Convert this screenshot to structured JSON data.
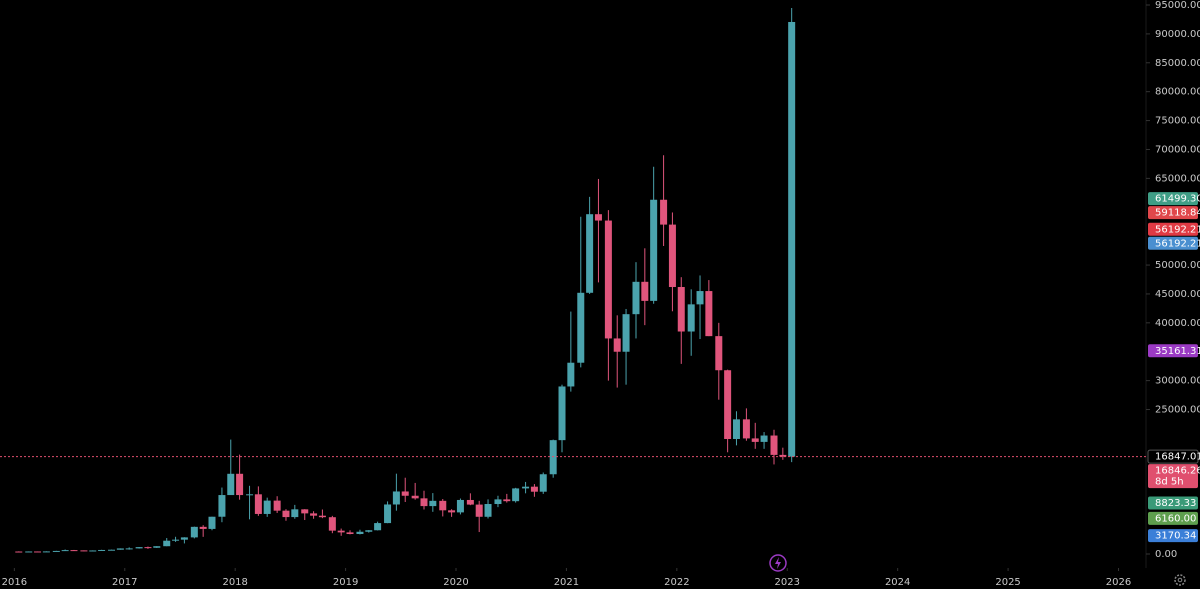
{
  "chart_data": {
    "type": "candlestick",
    "up_color": "#4ba3ad",
    "down_color": "#e0557c",
    "x": [
      2016.04,
      2016.13,
      2016.21,
      2016.29,
      2016.38,
      2016.46,
      2016.54,
      2016.63,
      2016.71,
      2016.79,
      2016.88,
      2016.96,
      2017.04,
      2017.13,
      2017.21,
      2017.29,
      2017.38,
      2017.46,
      2017.54,
      2017.63,
      2017.71,
      2017.79,
      2017.88,
      2017.96,
      2018.04,
      2018.13,
      2018.21,
      2018.29,
      2018.38,
      2018.46,
      2018.54,
      2018.63,
      2018.71,
      2018.79,
      2018.88,
      2018.96,
      2019.04,
      2019.13,
      2019.21,
      2019.29,
      2019.38,
      2019.46,
      2019.54,
      2019.63,
      2019.71,
      2019.79,
      2019.88,
      2019.96,
      2020.04,
      2020.13,
      2020.21,
      2020.29,
      2020.38,
      2020.46,
      2020.54,
      2020.63,
      2020.71,
      2020.79,
      2020.88,
      2020.96,
      2021.04,
      2021.13,
      2021.21,
      2021.29,
      2021.38,
      2021.46,
      2021.54,
      2021.63,
      2021.71,
      2021.79,
      2021.88,
      2021.96,
      2022.04,
      2022.13,
      2022.21,
      2022.29,
      2022.38,
      2022.46,
      2022.54,
      2022.63,
      2022.71,
      2022.79,
      2022.88,
      2022.96,
      2023.04
    ],
    "open": [
      430,
      368,
      437,
      416,
      448,
      531,
      673,
      624,
      573,
      609,
      698,
      742,
      963,
      970,
      1190,
      1080,
      1348,
      2300,
      2480,
      2875,
      4700,
      4340,
      6450,
      10200,
      13880,
      10200,
      10330,
      6930,
      9240,
      7500,
      6390,
      7730,
      7030,
      6630,
      6370,
      4040,
      3740,
      3460,
      3850,
      4110,
      5350,
      8570,
      10820,
      10080,
      9630,
      8290,
      9200,
      7560,
      7200,
      9350,
      8550,
      6440,
      8650,
      9450,
      9140,
      11350,
      11650,
      10780,
      13800,
      19700,
      28990,
      33100,
      45200,
      58800,
      57700,
      37300,
      35000,
      41500,
      47100,
      43800,
      61300,
      57000,
      46200,
      38500,
      43200,
      45500,
      37700,
      31800,
      19900,
      23300,
      20000,
      19400,
      20500,
      17150,
      16847
    ],
    "high": [
      460,
      448,
      440,
      470,
      550,
      780,
      704,
      626,
      630,
      730,
      755,
      975,
      1150,
      1200,
      1290,
      1350,
      2760,
      2980,
      2900,
      4740,
      4980,
      6450,
      11500,
      19800,
      17200,
      11800,
      11700,
      9750,
      10000,
      7750,
      8500,
      7760,
      7400,
      7700,
      6600,
      4400,
      4100,
      4200,
      4140,
      5600,
      9100,
      13900,
      13200,
      12300,
      10950,
      10540,
      9520,
      7750,
      9600,
      10500,
      9200,
      9450,
      10080,
      10400,
      11450,
      12470,
      12100,
      14100,
      19800,
      29300,
      41950,
      58350,
      61800,
      64900,
      59500,
      41300,
      42400,
      50500,
      52900,
      67000,
      69000,
      59100,
      47900,
      45800,
      48200,
      47400,
      40000,
      31900,
      24700,
      25200,
      22700,
      21100,
      21500,
      18400,
      94480
    ],
    "low": [
      350,
      366,
      410,
      414,
      436,
      530,
      604,
      471,
      570,
      608,
      685,
      742,
      751,
      936,
      890,
      1050,
      1348,
      2100,
      1830,
      2700,
      2970,
      4110,
      5500,
      10900,
      9400,
      6000,
      6600,
      6430,
      7100,
      5750,
      6100,
      5880,
      6100,
      6200,
      3600,
      3150,
      3400,
      3390,
      3700,
      4080,
      5330,
      7500,
      9000,
      9400,
      7700,
      7300,
      6500,
      6430,
      6850,
      8450,
      3800,
      6150,
      8110,
      8900,
      8900,
      10500,
      9900,
      10400,
      13200,
      17600,
      28100,
      32300,
      45000,
      47000,
      30000,
      28800,
      29300,
      37300,
      39600,
      43300,
      53300,
      42000,
      32900,
      34300,
      37200,
      37700,
      26700,
      17600,
      18800,
      19600,
      18200,
      18200,
      15500,
      16300,
      15900
    ],
    "close": [
      368,
      437,
      416,
      448,
      531,
      673,
      624,
      573,
      609,
      698,
      742,
      963,
      970,
      1190,
      1080,
      1348,
      2300,
      2480,
      2875,
      4700,
      4340,
      6450,
      10200,
      13880,
      10200,
      10330,
      6930,
      9240,
      7500,
      6390,
      7730,
      7030,
      6630,
      6370,
      4040,
      3740,
      3460,
      3850,
      4110,
      5350,
      8570,
      10820,
      10080,
      9630,
      8290,
      9200,
      7560,
      7200,
      9350,
      8550,
      6440,
      8650,
      9450,
      9140,
      11350,
      11650,
      10780,
      13800,
      19700,
      28990,
      33100,
      45200,
      58800,
      57700,
      37300,
      35000,
      41500,
      47100,
      43800,
      61300,
      57000,
      46200,
      38500,
      43200,
      45500,
      37700,
      31800,
      19900,
      23300,
      20000,
      19400,
      20500,
      17150,
      16847,
      92060
    ],
    "xlim": [
      2015.87,
      2026.24
    ],
    "xticks": [
      2016,
      2017,
      2018,
      2019,
      2020,
      2021,
      2022,
      2023,
      2024,
      2025,
      2026
    ],
    "ylim": [
      0,
      95000
    ],
    "yticks": [
      {
        "value": 95000,
        "label": "95000.00"
      },
      {
        "value": 90000,
        "label": "90000.00"
      },
      {
        "value": 85000,
        "label": "85000.00"
      },
      {
        "value": 80000,
        "label": "80000.00"
      },
      {
        "value": 75000,
        "label": "75000.00"
      },
      {
        "value": 70000,
        "label": "70000.00"
      },
      {
        "value": 65000,
        "label": "65000.00"
      },
      {
        "value": 50000,
        "label": "50000.00"
      },
      {
        "value": 45000,
        "label": "45000.00"
      },
      {
        "value": 40000,
        "label": "40000.00"
      },
      {
        "value": 30000,
        "label": "30000.00"
      },
      {
        "value": 25000,
        "label": "25000.00"
      },
      {
        "value": 0,
        "label": "0.00"
      }
    ],
    "price_labels": [
      {
        "value": 61499.3,
        "label": "61499.30",
        "color": "#3f9e86"
      },
      {
        "value": 59118.84,
        "label": "59118.84",
        "color": "#e0474b"
      },
      {
        "value": 56192.21,
        "label": "56192.21",
        "color": "#e03a44"
      },
      {
        "value": 56192.21,
        "label": "56192.21",
        "color": "#4a8fd0"
      },
      {
        "value": 35161.31,
        "label": "35161.31",
        "color": "#9b3ac4"
      },
      {
        "value": 16847.01,
        "label": "16847.01",
        "color": "#000000"
      },
      {
        "value": 16846.26,
        "label": "16846.26",
        "color": "#e04f6e",
        "countdown": "8d 5h",
        "dashed_line": true
      },
      {
        "value": 8823.33,
        "label": "8823.33",
        "color": "#3a9a78"
      },
      {
        "value": 6160.0,
        "label": "6160.00",
        "color": "#5e9f4e"
      },
      {
        "value": 3170.34,
        "label": "3170.34",
        "color": "#3b7fd8"
      }
    ]
  }
}
